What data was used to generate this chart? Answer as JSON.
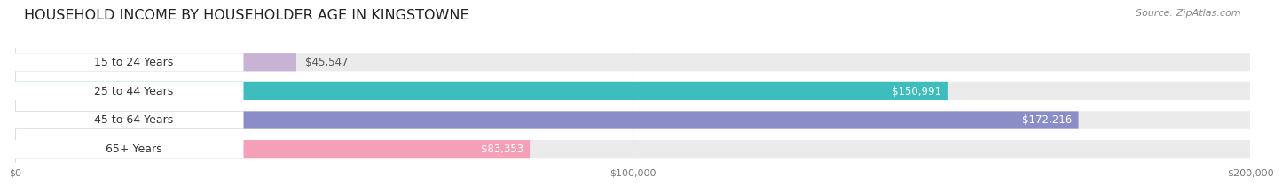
{
  "title": "HOUSEHOLD INCOME BY HOUSEHOLDER AGE IN KINGSTOWNE",
  "source": "Source: ZipAtlas.com",
  "categories": [
    "15 to 24 Years",
    "25 to 44 Years",
    "45 to 64 Years",
    "65+ Years"
  ],
  "values": [
    45547,
    150991,
    172216,
    83353
  ],
  "value_labels": [
    "$45,547",
    "$150,991",
    "$172,216",
    "$83,353"
  ],
  "bar_colors": [
    "#c9b3d4",
    "#3dbdbd",
    "#8b8dc8",
    "#f4a0b8"
  ],
  "bar_bg_colors": [
    "#e8e2f0",
    "#d8f0f0",
    "#e0e0f0",
    "#fce0ea"
  ],
  "label_bg_color": "#ffffff",
  "track_bg_color": "#ebebeb",
  "xmax": 200000,
  "xticks": [
    0,
    100000,
    200000
  ],
  "xtick_labels": [
    "$0",
    "$100,000",
    "$200,000"
  ],
  "title_fontsize": 11.5,
  "source_fontsize": 8,
  "label_fontsize": 9,
  "value_fontsize": 8.5,
  "background_color": "#ffffff",
  "grid_color": "#dddddd",
  "value_label_inside_color": "#ffffff",
  "value_label_outside_color": "#555555",
  "inside_threshold": 0.3
}
